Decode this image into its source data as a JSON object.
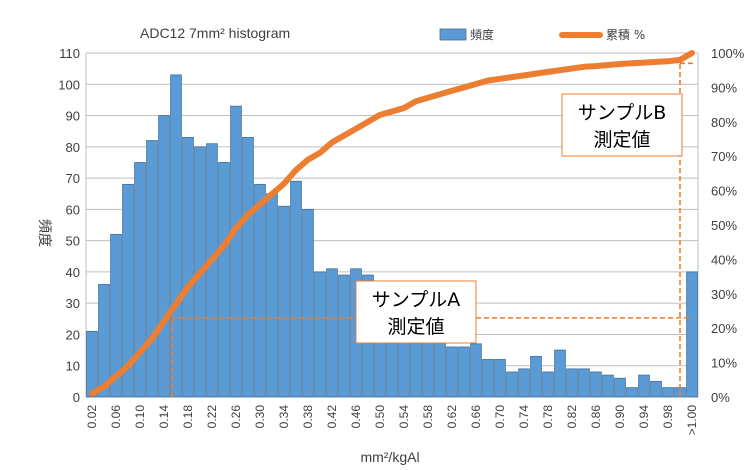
{
  "chart_data": {
    "type": "bar",
    "title": "ADC12 7mm² histogram",
    "xlabel": "mm²/kgAl",
    "ylabel": "頻度",
    "ylim": [
      0,
      110
    ],
    "y2lim": [
      0,
      100
    ],
    "yticks": [
      "0",
      "10",
      "20",
      "30",
      "40",
      "50",
      "60",
      "70",
      "80",
      "90",
      "100",
      "110"
    ],
    "y2ticks": [
      "0%",
      "10%",
      "20%",
      "30%",
      "40%",
      "50%",
      "60%",
      "70%",
      "80%",
      "90%",
      "100%"
    ],
    "categories": [
      "0.02",
      "0.04",
      "0.06",
      "0.08",
      "0.10",
      "0.12",
      "0.14",
      "0.16",
      "0.18",
      "0.20",
      "0.22",
      "0.24",
      "0.26",
      "0.28",
      "0.30",
      "0.32",
      "0.34",
      "0.36",
      "0.38",
      "0.40",
      "0.42",
      "0.44",
      "0.46",
      "0.48",
      "0.50",
      "0.52",
      "0.54",
      "0.56",
      "0.58",
      "0.60",
      "0.62",
      "0.64",
      "0.66",
      "0.68",
      "0.70",
      "0.72",
      "0.74",
      "0.76",
      "0.78",
      "0.80",
      "0.82",
      "0.84",
      "0.86",
      "0.88",
      "0.90",
      "0.92",
      "0.94",
      "0.96",
      "0.98",
      "1.00",
      ">1.00"
    ],
    "xtick_labels": [
      "0.02",
      "0.06",
      "0.10",
      "0.14",
      "0.18",
      "0.22",
      "0.26",
      "0.30",
      "0.34",
      "0.38",
      "0.42",
      "0.46",
      "0.50",
      "0.54",
      "0.58",
      "0.62",
      "0.66",
      "0.70",
      "0.74",
      "0.78",
      "0.82",
      "0.86",
      "0.90",
      "0.94",
      "0.98",
      ">1.00"
    ],
    "series": [
      {
        "name": "頻度",
        "type": "bar",
        "color": "#5B9BD5",
        "values": [
          21,
          36,
          52,
          68,
          75,
          82,
          90,
          103,
          83,
          80,
          81,
          75,
          93,
          83,
          68,
          65,
          61,
          69,
          60,
          40,
          41,
          39,
          41,
          39,
          20,
          20,
          20,
          20,
          20,
          18,
          16,
          16,
          17,
          12,
          12,
          8,
          9,
          13,
          8,
          15,
          9,
          9,
          8,
          7,
          6,
          3,
          7,
          5,
          3,
          3,
          40
        ]
      },
      {
        "name": "累積 %",
        "type": "line",
        "color": "#ED7D31",
        "axis": "right",
        "values": [
          1,
          3,
          6,
          9,
          13,
          17,
          22,
          27,
          32,
          36,
          40,
          44,
          49,
          53,
          56,
          59,
          62,
          66,
          69,
          71,
          74,
          76,
          78,
          80,
          82,
          83,
          84,
          86,
          87,
          88,
          89,
          90,
          91,
          92,
          92.5,
          93,
          93.5,
          94,
          94.5,
          95,
          95.5,
          96,
          96.2,
          96.5,
          96.8,
          97,
          97.2,
          97.4,
          97.6,
          98,
          100
        ]
      }
    ],
    "legend": "top-right",
    "grid": true,
    "annotations": [
      {
        "name": "sample-a",
        "line1": "サンプルA",
        "line2": "測定値",
        "cumulative_percent": 23,
        "x_category": "0.16",
        "x_end_category": ">1.00"
      },
      {
        "name": "sample-b",
        "line1": "サンプルB",
        "line2": "測定値",
        "cumulative_percent": 97,
        "x_category": "1.00"
      }
    ]
  }
}
